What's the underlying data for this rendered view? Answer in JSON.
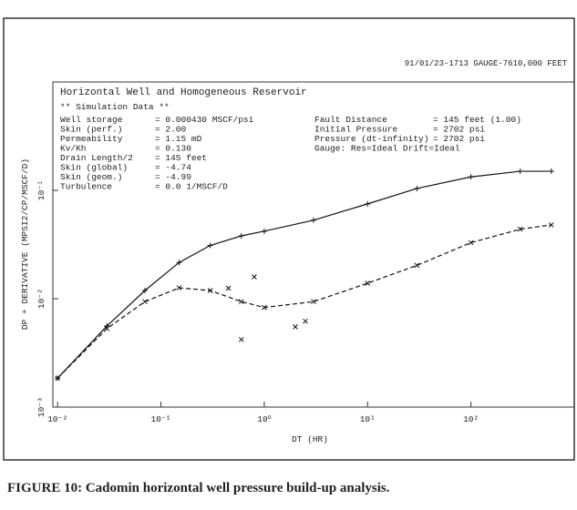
{
  "chart_data": {
    "type": "line",
    "header": "91/01/23-1713 GAUGE-7610,000 FEET",
    "box_title": "Horizontal Well and Homogeneous Reservoir",
    "box_subtitle": "** Simulation Data **",
    "box_left": [
      [
        "Well storage",
        "= 0.000430 MSCF/psi"
      ],
      [
        "Skin (perf.)",
        "= 2.00"
      ],
      [
        "Permeability",
        "= 1.15 mD"
      ],
      [
        "Kv/Kh",
        "= 0.130"
      ],
      [
        "Drain Length/2",
        "= 145 feet"
      ],
      [
        "Skin (global)",
        "= -4.74"
      ],
      [
        "Skin (geom.)",
        "= -4.99"
      ],
      [
        "Turbulence",
        "= 0.0  1/MSCF/D"
      ]
    ],
    "box_right": [
      [
        "Fault Distance",
        "= 145 feet (1.00)"
      ],
      [
        "Initial Pressure",
        "= 2702 psi"
      ],
      [
        "Pressure (dt-infinity)",
        "= 2702 psi"
      ],
      [
        "Gauge:  Res=Ideal  Drift=Ideal",
        ""
      ]
    ],
    "xlabel": "DT (HR)",
    "ylabel": "DP + DERIVATIVE (MPSI2/CP/MSCF/D)",
    "caption": "FIGURE 10: Cadomin horizontal well pressure build-up analysis.",
    "log_x": true,
    "log_y": true,
    "xlim": [
      0.009,
      1000
    ],
    "ylim": [
      0.001,
      1
    ],
    "xticks": [
      {
        "value": 0.01,
        "label": "10⁻²"
      },
      {
        "value": 0.1,
        "label": "10⁻¹"
      },
      {
        "value": 1,
        "label": "10⁰"
      },
      {
        "value": 10,
        "label": "10¹"
      },
      {
        "value": 100,
        "label": "10²"
      }
    ],
    "yticks": [
      {
        "value": 0.001,
        "label": "10⁻³"
      },
      {
        "value": 0.01,
        "label": "10⁻²"
      },
      {
        "value": 0.1,
        "label": "10⁻¹"
      }
    ],
    "x": [
      0.01,
      0.03,
      0.07,
      0.15,
      0.3,
      0.6,
      1,
      3,
      10,
      30,
      100,
      300,
      600
    ],
    "series": [
      {
        "color": "#111",
        "dash": false,
        "marker": "+",
        "values": [
          0.00185,
          0.0056,
          0.0119,
          0.0216,
          0.031,
          0.038,
          0.042,
          0.053,
          0.075,
          0.104,
          0.133,
          0.15,
          0.15
        ]
      },
      {
        "color": "#111",
        "dash": true,
        "marker": "x",
        "values": [
          0.00185,
          0.0053,
          0.0094,
          0.0126,
          0.0119,
          0.0094,
          0.0083,
          0.0094,
          0.0139,
          0.0203,
          0.0329,
          0.0438,
          0.048
        ]
      }
    ],
    "outliers": {
      "x": [
        0.6,
        0.8,
        0.45,
        2,
        2.5
      ],
      "values": [
        0.0042,
        0.0159,
        0.0125,
        0.0055,
        0.0062
      ]
    }
  }
}
